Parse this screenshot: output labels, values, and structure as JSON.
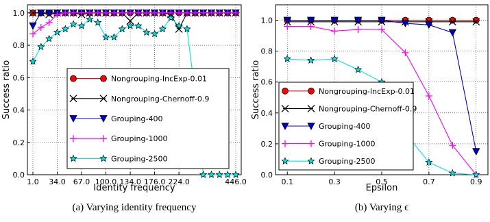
{
  "chart_data": [
    {
      "type": "line",
      "xlabel": "Identity frequency",
      "ylabel": "Success ratio",
      "caption": "(a) Varying identity frequency",
      "x_tick_labels": [
        "1.0",
        "34.0",
        "67.0",
        "100.0",
        "134.0",
        "176.0",
        "224.0",
        "446.0"
      ],
      "y_ticks": [
        "0.0",
        "0.2",
        "0.4",
        "0.6",
        "0.8",
        "1.0"
      ],
      "ylim": [
        0,
        1.05
      ],
      "legend_position": "center-right",
      "grid": true,
      "series": [
        {
          "name": "Nongrouping-IncExp-0.01",
          "color": "#ff0000",
          "marker": "circle",
          "values": [
            1,
            1,
            1,
            1,
            1,
            1,
            1,
            1,
            1,
            1,
            1,
            1,
            1,
            1,
            1,
            1,
            1,
            1,
            1,
            1,
            1,
            1,
            1,
            1,
            1,
            1
          ]
        },
        {
          "name": "Nongrouping-Chernoff-0.9",
          "color": "#000000",
          "marker": "x",
          "values": [
            1,
            1,
            0.99,
            1,
            1,
            1,
            0.99,
            1,
            1,
            1,
            1,
            1,
            0.95,
            1,
            1,
            1,
            1,
            0.99,
            0.9,
            1,
            1,
            1,
            1,
            1,
            1,
            1
          ]
        },
        {
          "name": "Grouping-400",
          "color": "#0000cc",
          "marker": "triangle-down",
          "values": [
            0.92,
            1,
            1,
            1,
            1,
            1,
            1,
            1,
            1,
            1,
            1,
            1,
            1,
            1,
            1,
            1,
            1,
            1,
            1,
            1,
            1,
            1,
            1,
            1,
            1,
            1
          ]
        },
        {
          "name": "Grouping-1000",
          "color": "#ff00ff",
          "marker": "plus",
          "values": [
            0.87,
            0.91,
            0.94,
            0.99,
            1,
            1,
            1,
            1,
            1,
            1,
            1,
            1,
            1,
            1,
            1,
            1,
            1,
            1,
            1,
            1,
            1,
            1,
            1,
            1,
            1,
            1
          ]
        },
        {
          "name": "Grouping-2500",
          "color": "#00e5e5",
          "marker": "star",
          "values": [
            0.7,
            0.79,
            0.84,
            0.88,
            0.9,
            0.93,
            0.92,
            0.96,
            0.94,
            0.85,
            0.85,
            0.9,
            0.92,
            0.92,
            0.88,
            0.87,
            0.9,
            0.97,
            0.92,
            0.9,
            0.5,
            0,
            0,
            0,
            0,
            0
          ]
        }
      ]
    },
    {
      "type": "line",
      "xlabel": "Epsilon",
      "ylabel": "Success ratio",
      "caption": "(b) Varying ϵ",
      "x": [
        0.1,
        0.2,
        0.3,
        0.4,
        0.5,
        0.6,
        0.7,
        0.8,
        0.9
      ],
      "x_tick_labels": [
        "0.1",
        "0.3",
        "0.5",
        "0.7",
        "0.9"
      ],
      "y_ticks": [
        "0.0",
        "0.2",
        "0.4",
        "0.6",
        "0.8",
        "1.0"
      ],
      "xlim": [
        0.05,
        0.95
      ],
      "ylim": [
        0,
        1.1
      ],
      "legend_position": "lower-left",
      "grid": true,
      "series": [
        {
          "name": "Nongrouping-IncExp-0.01",
          "color": "#ff0000",
          "marker": "circle",
          "values": [
            1,
            1,
            1,
            1,
            1,
            1,
            1,
            1,
            1
          ]
        },
        {
          "name": "Nongrouping-Chernoff-0.9",
          "color": "#000000",
          "marker": "x",
          "values": [
            0.99,
            0.99,
            0.99,
            0.99,
            0.99,
            0.99,
            0.99,
            0.99,
            0.99
          ]
        },
        {
          "name": "Grouping-400",
          "color": "#0000cc",
          "marker": "triangle-down",
          "values": [
            1,
            1,
            1,
            1,
            1,
            0.98,
            0.97,
            0.92,
            0.15
          ]
        },
        {
          "name": "Grouping-1000",
          "color": "#ff00ff",
          "marker": "plus",
          "values": [
            0.96,
            0.96,
            0.93,
            0.94,
            0.94,
            0.79,
            0.51,
            0.19,
            0
          ]
        },
        {
          "name": "Grouping-2500",
          "color": "#00e5e5",
          "marker": "star",
          "values": [
            0.75,
            0.74,
            0.75,
            0.68,
            0.6,
            0.27,
            0.08,
            0.01,
            0
          ]
        }
      ]
    }
  ]
}
